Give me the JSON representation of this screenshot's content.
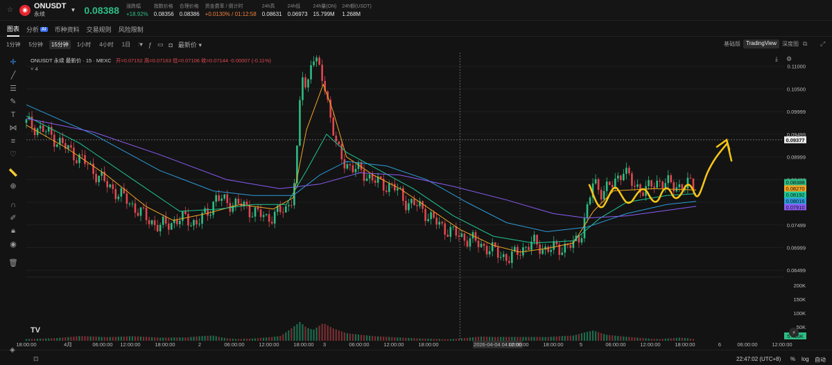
{
  "header": {
    "symbol": "ONUSDT",
    "contract_type": "永续",
    "last_price": "0.08388",
    "stats": [
      {
        "label": "涨跌幅",
        "value": "+18.92%",
        "tone": "up"
      },
      {
        "label": "指数价格",
        "value": "0.08356",
        "tone": ""
      },
      {
        "label": "合理价格",
        "value": "0.08386",
        "tone": ""
      },
      {
        "label": "资金费率 / 倒计时",
        "value": "+0.0130% / 01:12:58",
        "tone": "orange"
      },
      {
        "label": "24h高",
        "value": "0.08631",
        "tone": ""
      },
      {
        "label": "24h低",
        "value": "0.06973",
        "tone": ""
      },
      {
        "label": "24h量(ON)",
        "value": "15.799M",
        "tone": ""
      },
      {
        "label": "24h额(USDT)",
        "value": "1.268M",
        "tone": ""
      }
    ]
  },
  "tabs": {
    "chart": "图表",
    "analysis": "分析",
    "analysis_badge": "AI",
    "coin_info": "币种资料",
    "trading_rules": "交易规则",
    "risk_limit": "风险限制"
  },
  "toolbar": {
    "timeframes": [
      "1分钟",
      "5分钟",
      "15分钟",
      "1小时",
      "4小时",
      "1日"
    ],
    "active_timeframe": "15分钟",
    "latest_price_menu": "最新价",
    "views": [
      "基础版",
      "TradingView",
      "深度图"
    ],
    "active_view": "TradingView"
  },
  "legend": {
    "title": "ONUSDT 永续 最新价 · 15 · MEXC",
    "ohlc": "开=0.07152 高=0.07163 低=0.07106 收=0.07144 -0.00007 (-0.11%)",
    "indicator_count": "4"
  },
  "chart_data": {
    "type": "candlestick",
    "y_axis_price": [
      "0.11000",
      "0.10500",
      "0.09999",
      "0.09499",
      "0.08999",
      "0.08499",
      "0.07999",
      "0.07499",
      "0.06999",
      "0.06499"
    ],
    "y_axis_volume": [
      "200K",
      "150K",
      "100K",
      "50K"
    ],
    "x_axis": [
      "18:00:00",
      "4月",
      "06:00:00",
      "12:00:00",
      "18:00:00",
      "2",
      "06:00:00",
      "12:00:00",
      "18:00:00",
      "3",
      "06:00:00",
      "12:00:00",
      "18:00:00",
      "2026-04-04  04:00:00",
      "12:00:00",
      "18:00:00",
      "5",
      "06:00:00",
      "12:00:00",
      "18:00:00",
      "6",
      "06:00:00",
      "12:00:00",
      "18:00:00"
    ],
    "crosshair_x_label": "2026-04-04  04:00:00",
    "crosshair_price": "0.09377",
    "price_tags": [
      {
        "value": "0.08388",
        "color": "#2ebd85"
      },
      {
        "value": "0.08270",
        "color": "#f5a623"
      },
      {
        "value": "0.08192",
        "color": "#20c997"
      },
      {
        "value": "0.08016",
        "color": "#2d9cdb"
      },
      {
        "value": "0.07910",
        "color": "#8b5cf6"
      }
    ],
    "volume_tag": "5.456K",
    "ma_colors": [
      "#f5a623",
      "#20c997",
      "#2d9cdb",
      "#8b5cf6"
    ],
    "price_range": [
      0.0635,
      0.113
    ],
    "price_path": [
      [
        0,
        0.0975
      ],
      [
        30,
        0.0955
      ],
      [
        60,
        0.092
      ],
      [
        90,
        0.0885
      ],
      [
        120,
        0.084
      ],
      [
        150,
        0.0805
      ],
      [
        180,
        0.0765
      ],
      [
        200,
        0.0745
      ],
      [
        220,
        0.0758
      ],
      [
        240,
        0.0765
      ],
      [
        255,
        0.0752
      ],
      [
        270,
        0.0775
      ],
      [
        285,
        0.081
      ],
      [
        300,
        0.08
      ],
      [
        320,
        0.0795
      ],
      [
        340,
        0.078
      ],
      [
        360,
        0.0765
      ],
      [
        375,
        0.0775
      ],
      [
        390,
        0.0785
      ],
      [
        400,
        0.082
      ],
      [
        408,
        0.094
      ],
      [
        412,
        0.11
      ],
      [
        420,
        0.104
      ],
      [
        428,
        0.113
      ],
      [
        436,
        0.11
      ],
      [
        445,
        0.107
      ],
      [
        455,
        0.1
      ],
      [
        465,
        0.092
      ],
      [
        475,
        0.089
      ],
      [
        490,
        0.0875
      ],
      [
        510,
        0.086
      ],
      [
        530,
        0.084
      ],
      [
        550,
        0.0835
      ],
      [
        570,
        0.08
      ],
      [
        590,
        0.079
      ],
      [
        610,
        0.076
      ],
      [
        630,
        0.074
      ],
      [
        650,
        0.0725
      ],
      [
        670,
        0.0715
      ],
      [
        690,
        0.07
      ],
      [
        710,
        0.0685
      ],
      [
        725,
        0.0675
      ],
      [
        740,
        0.0695
      ],
      [
        760,
        0.071
      ],
      [
        780,
        0.0695
      ],
      [
        800,
        0.07
      ],
      [
        820,
        0.0705
      ],
      [
        830,
        0.0725
      ],
      [
        840,
        0.078
      ],
      [
        850,
        0.0845
      ],
      [
        860,
        0.0825
      ],
      [
        880,
        0.0838
      ],
      [
        895,
        0.0875
      ],
      [
        910,
        0.0835
      ],
      [
        930,
        0.0828
      ],
      [
        950,
        0.0848
      ],
      [
        970,
        0.0835
      ],
      [
        990,
        0.0838
      ],
      [
        1004,
        0.0838
      ]
    ],
    "ma_paths": [
      [
        [
          0,
          0.097
        ],
        [
          60,
          0.092
        ],
        [
          120,
          0.086
        ],
        [
          180,
          0.079
        ],
        [
          220,
          0.076
        ],
        [
          270,
          0.0775
        ],
        [
          320,
          0.0795
        ],
        [
          370,
          0.0785
        ],
        [
          400,
          0.081
        ],
        [
          420,
          0.096
        ],
        [
          445,
          0.106
        ],
        [
          460,
          0.1
        ],
        [
          480,
          0.09
        ],
        [
          520,
          0.086
        ],
        [
          560,
          0.083
        ],
        [
          600,
          0.079
        ],
        [
          650,
          0.074
        ],
        [
          700,
          0.0705
        ],
        [
          740,
          0.069
        ],
        [
          780,
          0.0698
        ],
        [
          820,
          0.071
        ],
        [
          850,
          0.078
        ],
        [
          880,
          0.0825
        ],
        [
          940,
          0.083
        ],
        [
          1004,
          0.0827
        ]
      ],
      [
        [
          0,
          0.099
        ],
        [
          80,
          0.093
        ],
        [
          160,
          0.085
        ],
        [
          230,
          0.078
        ],
        [
          290,
          0.0785
        ],
        [
          340,
          0.0795
        ],
        [
          390,
          0.0795
        ],
        [
          420,
          0.087
        ],
        [
          450,
          0.095
        ],
        [
          480,
          0.091
        ],
        [
          530,
          0.087
        ],
        [
          580,
          0.083
        ],
        [
          640,
          0.077
        ],
        [
          700,
          0.0725
        ],
        [
          760,
          0.071
        ],
        [
          820,
          0.0715
        ],
        [
          860,
          0.0765
        ],
        [
          900,
          0.08
        ],
        [
          960,
          0.0815
        ],
        [
          1004,
          0.0819
        ]
      ],
      [
        [
          0,
          0.1015
        ],
        [
          100,
          0.095
        ],
        [
          200,
          0.087
        ],
        [
          280,
          0.0825
        ],
        [
          340,
          0.0815
        ],
        [
          400,
          0.0815
        ],
        [
          440,
          0.086
        ],
        [
          480,
          0.089
        ],
        [
          540,
          0.088
        ],
        [
          600,
          0.085
        ],
        [
          660,
          0.08
        ],
        [
          720,
          0.0755
        ],
        [
          780,
          0.0735
        ],
        [
          840,
          0.0745
        ],
        [
          900,
          0.0775
        ],
        [
          960,
          0.0795
        ],
        [
          1004,
          0.0802
        ]
      ],
      [
        [
          0,
          0.0985
        ],
        [
          100,
          0.0955
        ],
        [
          200,
          0.0905
        ],
        [
          300,
          0.085
        ],
        [
          380,
          0.083
        ],
        [
          440,
          0.084
        ],
        [
          500,
          0.0865
        ],
        [
          560,
          0.086
        ],
        [
          640,
          0.0835
        ],
        [
          720,
          0.0805
        ],
        [
          790,
          0.0775
        ],
        [
          840,
          0.0765
        ],
        [
          900,
          0.077
        ],
        [
          960,
          0.0782
        ],
        [
          1004,
          0.0791
        ]
      ]
    ],
    "volume_path": [
      [
        0,
        12
      ],
      [
        40,
        10
      ],
      [
        80,
        14
      ],
      [
        120,
        9
      ],
      [
        160,
        11
      ],
      [
        200,
        8
      ],
      [
        240,
        10
      ],
      [
        280,
        22
      ],
      [
        300,
        14
      ],
      [
        340,
        11
      ],
      [
        380,
        15
      ],
      [
        400,
        40
      ],
      [
        410,
        52
      ],
      [
        420,
        35
      ],
      [
        430,
        28
      ],
      [
        445,
        44
      ],
      [
        460,
        30
      ],
      [
        480,
        18
      ],
      [
        520,
        12
      ],
      [
        560,
        10
      ],
      [
        600,
        9
      ],
      [
        640,
        11
      ],
      [
        680,
        16
      ],
      [
        700,
        12
      ],
      [
        740,
        10
      ],
      [
        780,
        9
      ],
      [
        820,
        13
      ],
      [
        850,
        28
      ],
      [
        870,
        18
      ],
      [
        900,
        15
      ],
      [
        940,
        12
      ],
      [
        980,
        14
      ],
      [
        1004,
        5
      ]
    ],
    "volume_range": [
      0,
      230
    ]
  },
  "footer": {
    "clock": "22:47:02 (UTC+8)",
    "percent": "%",
    "log": "log",
    "auto": "自动"
  }
}
